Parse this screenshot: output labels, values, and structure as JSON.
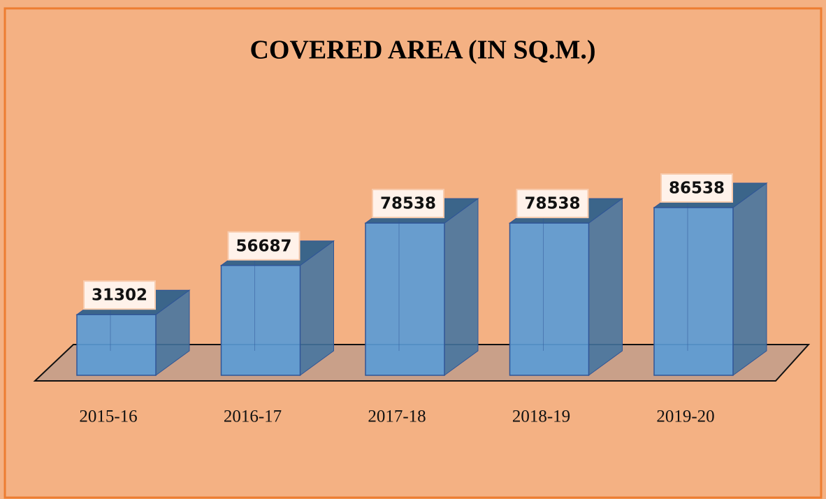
{
  "chart_data": {
    "type": "bar",
    "title": "COVERED AREA (IN SQ.M.)",
    "categories": [
      "2015-16",
      "2016-17",
      "2017-18",
      "2018-19",
      "2019-20"
    ],
    "values": [
      31302,
      56687,
      78538,
      78538,
      86538
    ],
    "color": "#5b9bd5"
  }
}
